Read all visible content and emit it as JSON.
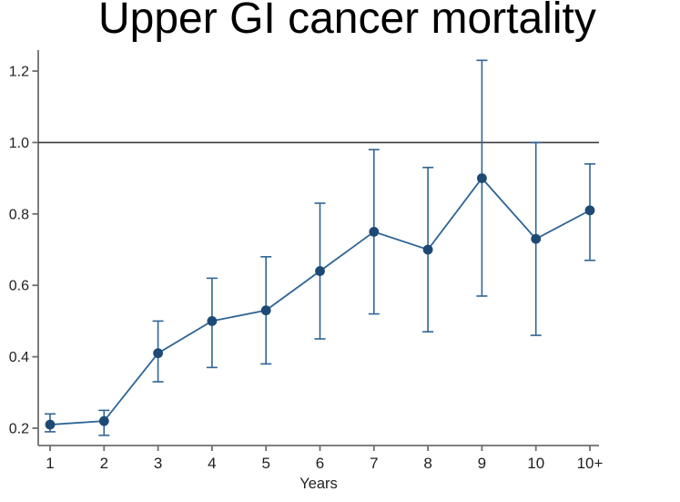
{
  "chart_data": {
    "type": "line",
    "title": "Upper GI cancer mortality",
    "xlabel": "Years",
    "ylabel": "",
    "categories": [
      "1",
      "2",
      "3",
      "4",
      "5",
      "6",
      "7",
      "8",
      "9",
      "10",
      "10+"
    ],
    "series": [
      {
        "values": [
          0.21,
          0.22,
          0.41,
          0.5,
          0.53,
          0.64,
          0.75,
          0.7,
          0.9,
          0.73,
          0.81
        ],
        "ci_low": [
          0.19,
          0.18,
          0.33,
          0.37,
          0.38,
          0.45,
          0.52,
          0.47,
          0.57,
          0.46,
          0.67
        ],
        "ci_high": [
          0.24,
          0.25,
          0.5,
          0.62,
          0.68,
          0.83,
          0.98,
          0.93,
          1.23,
          1.0,
          0.94
        ]
      }
    ],
    "reference_line_y": 1.0,
    "yticks": [
      "0.2",
      "0.4",
      "0.6",
      "0.8",
      "1.0",
      "1.2"
    ],
    "ylim": [
      0.15,
      1.26
    ],
    "grid": false,
    "legend": false,
    "markers": "filled-circle",
    "error_bars": true,
    "colors": {
      "line": "#2f6496",
      "marker": "#1d4a75",
      "error_bar": "#2f6496",
      "reference_line": "#3d3d3d",
      "axis": "#6e6e6e",
      "tick_label": "#1f1f1f",
      "title": "#000000"
    }
  }
}
